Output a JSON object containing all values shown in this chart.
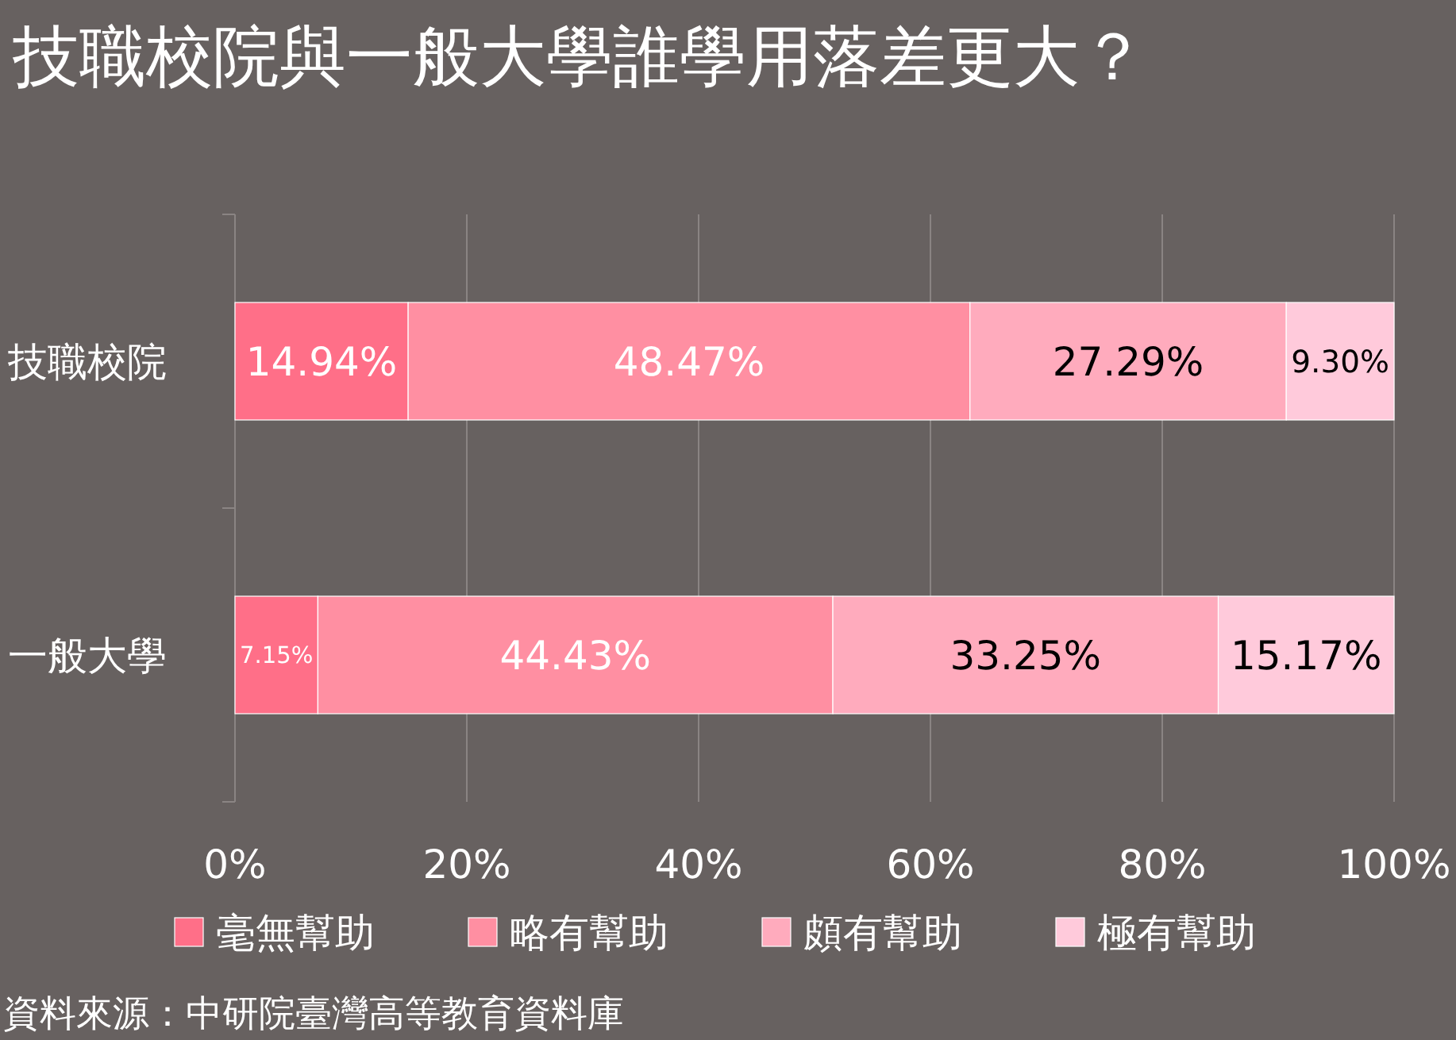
{
  "chart_data": {
    "type": "bar",
    "orientation": "horizontal",
    "stacked": true,
    "title": "技職校院與一般大學誰學用落差更大？",
    "categories": [
      "技職校院",
      "一般大學"
    ],
    "series": [
      {
        "name": "毫無幫助",
        "color": "#ff6f88",
        "values": [
          14.94,
          7.15
        ],
        "value_labels": [
          "14.94%",
          "7.15%"
        ]
      },
      {
        "name": "略有幫助",
        "color": "#ff8fa2",
        "values": [
          48.47,
          44.43
        ],
        "value_labels": [
          "48.47%",
          "44.43%"
        ]
      },
      {
        "name": "頗有幫助",
        "color": "#ffabbd",
        "values": [
          27.29,
          33.25
        ],
        "value_labels": [
          "27.29%",
          "33.25%"
        ]
      },
      {
        "name": "極有幫助",
        "color": "#ffcadb",
        "values": [
          9.3,
          15.17
        ],
        "value_labels": [
          "9.30%",
          "15.17%"
        ]
      }
    ],
    "xlim": [
      0,
      100
    ],
    "xticks": [
      {
        "value": 0,
        "label": "0%"
      },
      {
        "value": 20,
        "label": "20%"
      },
      {
        "value": 40,
        "label": "40%"
      },
      {
        "value": 60,
        "label": "60%"
      },
      {
        "value": 80,
        "label": "80%"
      },
      {
        "value": 100,
        "label": "100%"
      }
    ],
    "grid": "x",
    "legend": "bottom",
    "annotations": [
      "資料來源：中研院臺灣高等教育資料庫"
    ]
  }
}
